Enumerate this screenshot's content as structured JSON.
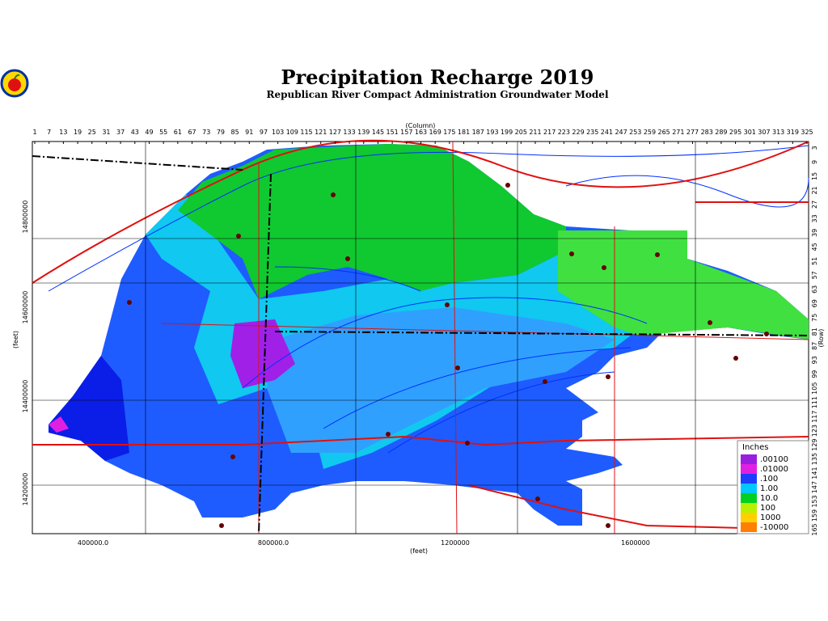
{
  "title": "Precipitation Recharge 2019",
  "subtitle": "Republican River Compact Administration Groundwater Model",
  "column_axis": {
    "label": "(Column)",
    "ticks": [
      1,
      7,
      13,
      19,
      25,
      31,
      37,
      43,
      49,
      55,
      61,
      67,
      73,
      79,
      85,
      91,
      97,
      103,
      109,
      115,
      121,
      127,
      133,
      139,
      145,
      151,
      157,
      163,
      169,
      175,
      181,
      187,
      193,
      199,
      205,
      211,
      217,
      223,
      229,
      235,
      241,
      247,
      253,
      259,
      265,
      271,
      277,
      283,
      289,
      295,
      301,
      307,
      313,
      319,
      325
    ]
  },
  "row_axis": {
    "label": "(Row)",
    "ticks": [
      3,
      9,
      15,
      21,
      27,
      33,
      39,
      45,
      51,
      57,
      63,
      69,
      75,
      81,
      87,
      93,
      99,
      105,
      111,
      117,
      123,
      129,
      135,
      141,
      147,
      153,
      159,
      165
    ]
  },
  "x_axis": {
    "label": "(feet)",
    "ticks": [
      "400000.0",
      "800000.0",
      "1200000",
      "1600000"
    ]
  },
  "y_axis": {
    "label": "(feet)",
    "ticks": [
      "14800000",
      "14600000",
      "14400000",
      "14200000"
    ]
  },
  "legend": {
    "title": "Inches",
    "items": [
      {
        "label": ".00100",
        "color": "#9a1ee0"
      },
      {
        "label": ".01000",
        "color": "#e020e0"
      },
      {
        "label": ".100",
        "color": "#1e3cff"
      },
      {
        "label": "1.00",
        "color": "#00c8ff"
      },
      {
        "label": "10.0",
        "color": "#00d020"
      },
      {
        "label": "100",
        "color": "#b8f000"
      },
      {
        "label": "1000",
        "color": "#ffd000"
      },
      {
        "label": "-10000",
        "color": "#ff8000"
      }
    ]
  }
}
